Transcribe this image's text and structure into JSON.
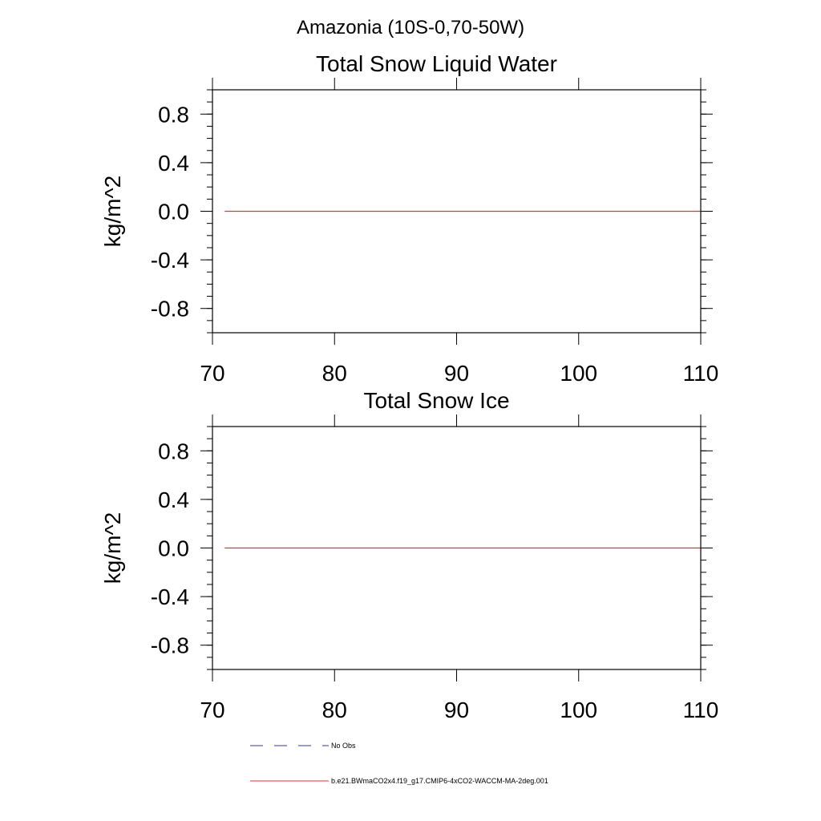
{
  "figure": {
    "title": "Amazonia (10S-0,70-50W)"
  },
  "chart_data": [
    {
      "type": "line",
      "title": "Total Snow Liquid Water",
      "xlabel": "",
      "ylabel": "kg/m^2",
      "xlim": [
        70,
        110
      ],
      "ylim": [
        -1.0,
        1.0
      ],
      "xticks": [
        70,
        80,
        90,
        100,
        110
      ],
      "xtick_labels": [
        "70",
        "80",
        "90",
        "100",
        "110"
      ],
      "yticks": [
        0.8,
        0.4,
        0.0,
        -0.4,
        -0.8
      ],
      "ytick_labels": [
        "0.8",
        "0.4",
        "0.0",
        "-0.4",
        "-0.8"
      ],
      "grid": false,
      "series": [
        {
          "name": "b.e21.BWmaCO2x4.f19_g17.CMIP6-4xCO2-WACCM-MA-2deg.001",
          "color": "#e0303a",
          "style": "solid",
          "x": [
            71,
            110
          ],
          "y": [
            0.0,
            0.0
          ]
        }
      ]
    },
    {
      "type": "line",
      "title": "Total Snow Ice",
      "xlabel": "",
      "ylabel": "kg/m^2",
      "xlim": [
        70,
        110
      ],
      "ylim": [
        -1.0,
        1.0
      ],
      "xticks": [
        70,
        80,
        90,
        100,
        110
      ],
      "xtick_labels": [
        "70",
        "80",
        "90",
        "100",
        "110"
      ],
      "yticks": [
        0.8,
        0.4,
        0.0,
        -0.4,
        -0.8
      ],
      "ytick_labels": [
        "0.8",
        "0.4",
        "0.0",
        "-0.4",
        "-0.8"
      ],
      "grid": false,
      "series": [
        {
          "name": "b.e21.BWmaCO2x4.f19_g17.CMIP6-4xCO2-WACCM-MA-2deg.001",
          "color": "#e0303a",
          "style": "solid",
          "x": [
            71,
            110
          ],
          "y": [
            0.0,
            0.0
          ]
        }
      ]
    }
  ],
  "legend": {
    "entries": [
      {
        "label": "No Obs",
        "color": "#3a3a8c",
        "style": "dashed"
      },
      {
        "label": "b.e21.BWmaCO2x4.f19_g17.CMIP6-4xCO2-WACCM-MA-2deg.001",
        "color": "#e0303a",
        "style": "solid"
      }
    ]
  }
}
